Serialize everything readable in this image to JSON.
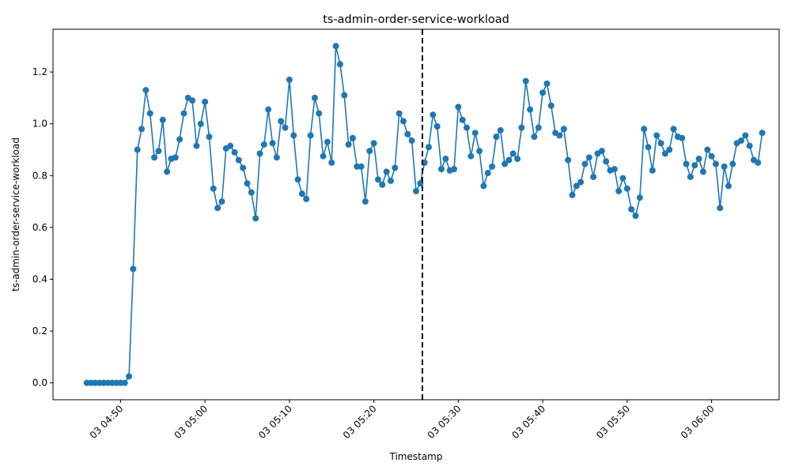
{
  "chart_data": {
    "type": "line",
    "title": "ts-admin-order-service-workload",
    "xlabel": "Timestamp",
    "ylabel": "ts-admin-order-service-workload",
    "x_start": "03 04:46",
    "interval_minutes": 0.5,
    "xlim": [
      "03 04:42",
      "03 06:08"
    ],
    "ylim": [
      -0.065,
      1.365
    ],
    "grid": false,
    "color": "#1f77b4",
    "yticks": [
      0.0,
      0.2,
      0.4,
      0.6,
      0.8,
      1.0,
      1.2
    ],
    "ytick_labels": [
      "0.0",
      "0.2",
      "0.4",
      "0.6",
      "0.8",
      "1.0",
      "1.2"
    ],
    "xticks": [
      "03 04:50",
      "03 05:00",
      "03 05:10",
      "03 05:20",
      "03 05:30",
      "03 05:40",
      "03 05:50",
      "03 06:00"
    ],
    "xtick_labels": [
      "03 04:50",
      "03 05:00",
      "03 05:10",
      "03 05:20",
      "03 05:30",
      "03 05:40",
      "03 05:50",
      "03 06:00"
    ],
    "vline": {
      "x": "03 05:25:45",
      "style": "dashed",
      "color": "#000000"
    },
    "values": [
      0.0,
      0.0,
      0.0,
      0.0,
      0.0,
      0.0,
      0.0,
      0.0,
      0.0,
      0.0,
      0.025,
      0.44,
      0.9,
      0.98,
      1.13,
      1.04,
      0.87,
      0.895,
      1.015,
      0.815,
      0.865,
      0.87,
      0.94,
      1.04,
      1.1,
      1.09,
      0.915,
      1.0,
      1.085,
      0.95,
      0.75,
      0.675,
      0.7,
      0.905,
      0.915,
      0.89,
      0.86,
      0.83,
      0.77,
      0.735,
      0.635,
      0.885,
      0.92,
      1.055,
      0.925,
      0.87,
      1.01,
      0.985,
      1.17,
      0.955,
      0.785,
      0.73,
      0.71,
      0.955,
      1.1,
      1.04,
      0.875,
      0.93,
      0.85,
      1.3,
      1.23,
      1.11,
      0.92,
      0.945,
      0.835,
      0.835,
      0.7,
      0.895,
      0.925,
      0.785,
      0.765,
      0.815,
      0.78,
      0.83,
      1.04,
      1.01,
      0.96,
      0.935,
      0.74,
      0.77,
      0.85,
      0.91,
      1.035,
      0.99,
      0.825,
      0.865,
      0.82,
      0.825,
      1.065,
      1.015,
      0.985,
      0.875,
      0.965,
      0.895,
      0.76,
      0.81,
      0.835,
      0.95,
      0.975,
      0.845,
      0.86,
      0.885,
      0.865,
      0.985,
      1.165,
      1.055,
      0.95,
      0.985,
      1.12,
      1.155,
      1.07,
      0.965,
      0.955,
      0.98,
      0.86,
      0.725,
      0.76,
      0.775,
      0.845,
      0.87,
      0.795,
      0.885,
      0.895,
      0.855,
      0.82,
      0.825,
      0.74,
      0.79,
      0.75,
      0.67,
      0.645,
      0.715,
      0.98,
      0.91,
      0.82,
      0.955,
      0.925,
      0.885,
      0.9,
      0.98,
      0.95,
      0.945,
      0.845,
      0.795,
      0.84,
      0.865,
      0.815,
      0.9,
      0.875,
      0.845,
      0.675,
      0.835,
      0.76,
      0.845,
      0.925,
      0.935,
      0.955,
      0.915,
      0.86,
      0.85,
      0.965
    ]
  }
}
